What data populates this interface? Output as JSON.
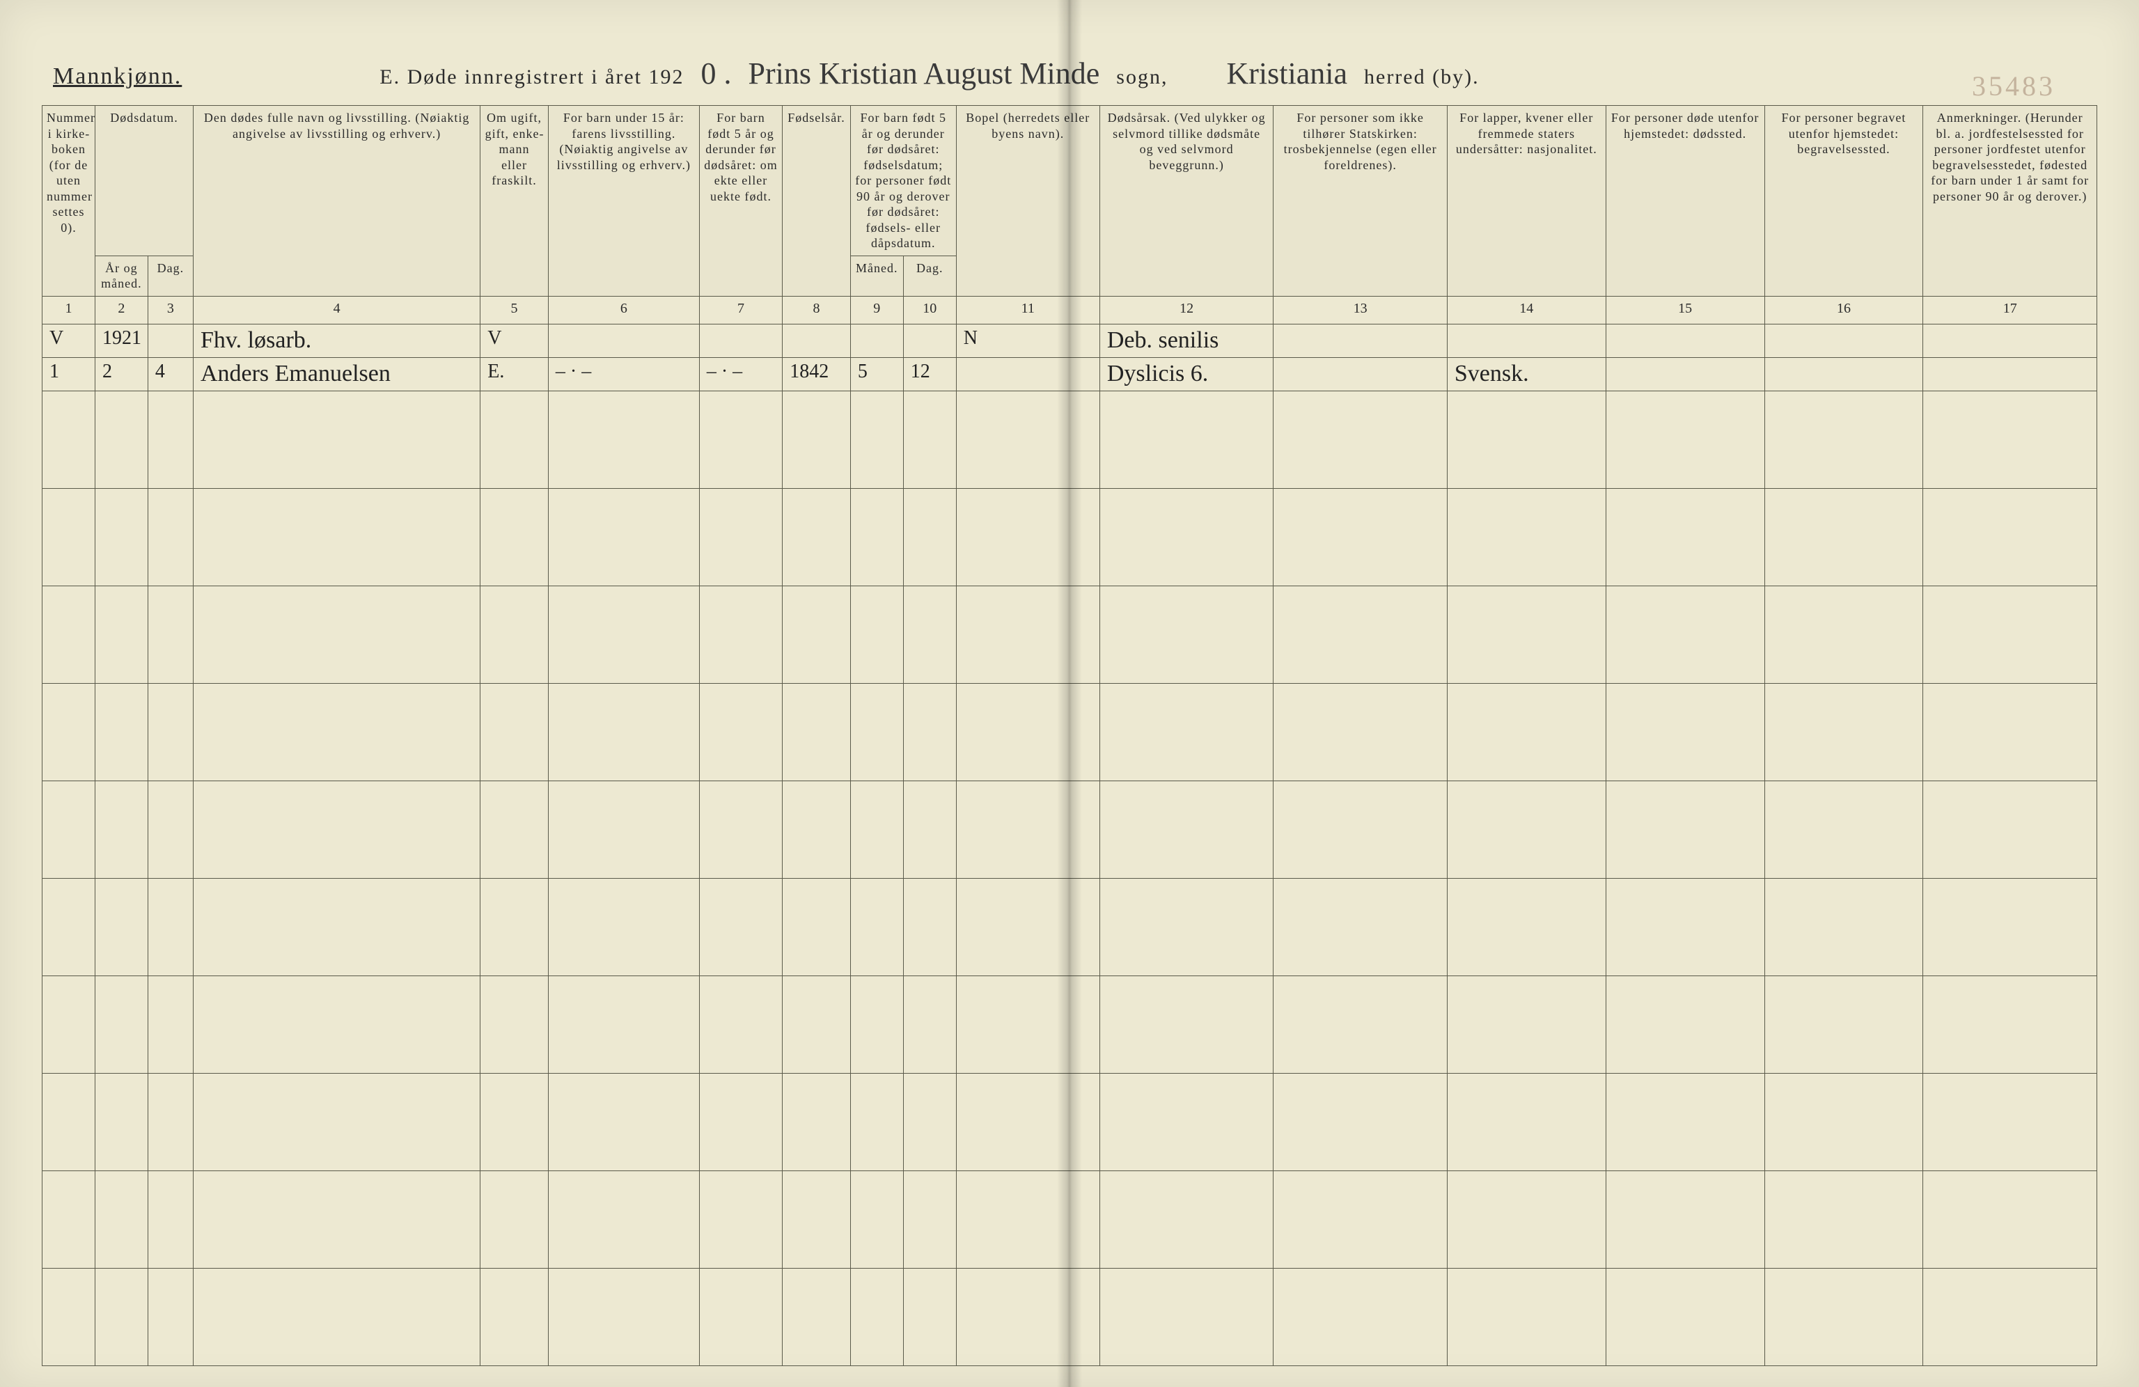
{
  "header": {
    "mannkjonn": "Mannkjønn.",
    "title_prefix": "E.   Døde innregistrert i året 192",
    "year_digit": "0 .",
    "parish_script": "Prins Kristian August Minde",
    "sogn_label": "sogn,",
    "herred_script": "Kristiania",
    "herred_label": "herred (by).",
    "pencil_right": "35483"
  },
  "columns": {
    "1": "Nummer i kirke­boken (for de uten nummer settes 0).",
    "2_top": "Dødsdatum.",
    "2": "År og måned.",
    "3": "Dag.",
    "4": "Den dødes fulle navn og livsstilling.\n(Nøiaktig angivelse av livsstilling og erhverv.)",
    "5": "Om ugift, gift, enke­mann eller fraskilt.",
    "6": "For barn under 15 år:\nfarens livsstilling.\n(Nøiaktig angivelse av livsstilling og erhverv.)",
    "7": "For barn født 5 år og derunder før døds­året: om ekte eller uekte født.",
    "8": "Fødsels­år.",
    "9_10_top": "For barn født 5 år og der­under før dødsåret: fødselsdatum; for personer født 90 år og derover før dødsåret: fødsels- eller dåpsdatum.",
    "9": "Måned.",
    "10": "Dag.",
    "11": "Bopel\n(herredets eller byens navn).",
    "12": "Dødsårsak.\n(Ved ulykker og selv­mord tillike dødsmåte og ved selvmord beveggrunn.)",
    "13": "For personer som ikke tilhører Statskirken:\ntrosbekjennelse\n(egen eller foreldrenes).",
    "14": "For lapper, kvener eller fremmede staters undersåtter:\nnasjonalitet.",
    "15": "For personer døde utenfor hjemstedet:\ndødssted.",
    "16": "For personer begravet utenfor hjemstedet:\nbegravelsessted.",
    "17": "Anmerkninger.\n(Herunder bl. a. jordfestelsessted for personer jordfestet utenfor begravelses­stedet, fødested for barn under 1 år samt for personer 90 år og derover.)"
  },
  "colnums": [
    "1",
    "2",
    "3",
    "4",
    "5",
    "6",
    "7",
    "8",
    "9",
    "10",
    "11",
    "12",
    "13",
    "14",
    "15",
    "16",
    "17"
  ],
  "rows": [
    {
      "c1": "V",
      "c2": "1921",
      "c3": "",
      "c4": "Fhv. løsarb.",
      "c5": "V",
      "c6": "",
      "c7": "",
      "c8": "",
      "c9": "",
      "c10": "",
      "c11": "N",
      "c12": "Deb. senilis",
      "c13": "",
      "c14": "",
      "c15": "",
      "c16": "",
      "c17": ""
    },
    {
      "c1": "1",
      "c2": "2",
      "c3": "4",
      "c4": "Anders Emanuelsen",
      "c5": "E.",
      "c6": "– · –",
      "c7": "– · –",
      "c8": "1842",
      "c9": "5",
      "c10": "12",
      "c11": "",
      "c12": "Dyslicis 6.",
      "c13": "",
      "c14": "Svensk.",
      "c15": "",
      "c16": "",
      "c17": ""
    }
  ],
  "empty_row_count": 10
}
